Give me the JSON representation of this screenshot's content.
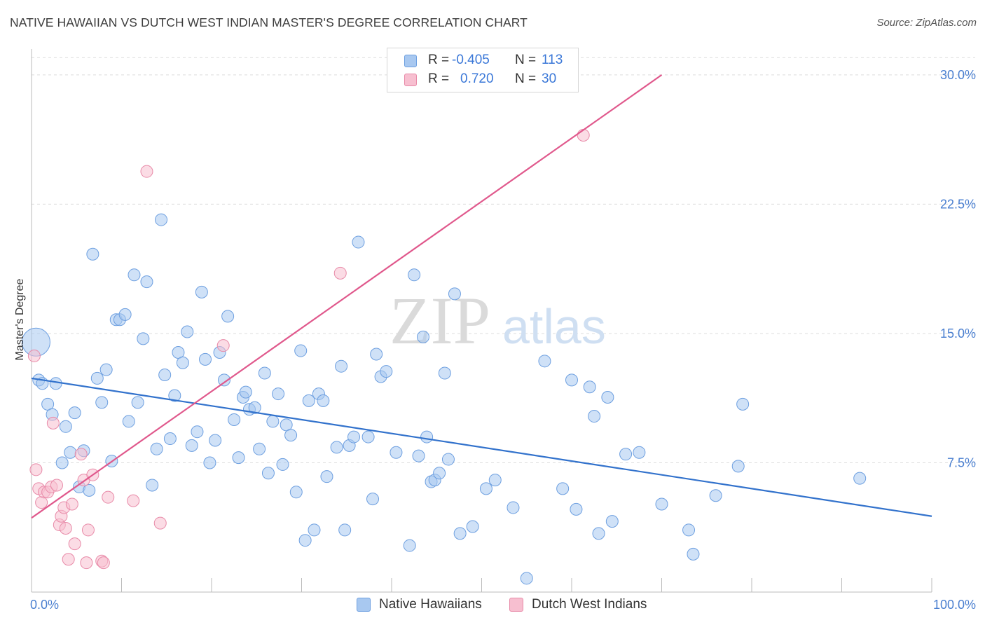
{
  "title": "NATIVE HAWAIIAN VS DUTCH WEST INDIAN MASTER'S DEGREE CORRELATION CHART",
  "source": "Source: ZipAtlas.com",
  "watermark": {
    "zip": "ZIP",
    "atlas": "atlas"
  },
  "stats": [
    {
      "r_label": "R =",
      "r_value": "-0.405",
      "n_label": "N =",
      "n_value": "113",
      "color": "#a8c8f0",
      "border": "#6d9fe0"
    },
    {
      "r_label": "R =",
      "r_value": "0.720",
      "n_label": "N =",
      "n_value": "30",
      "color": "#f7bfd0",
      "border": "#e88aa8"
    }
  ],
  "legend": [
    {
      "label": "Native Hawaiians",
      "color": "#a8c8f0",
      "border": "#6d9fe0"
    },
    {
      "label": "Dutch West Indians",
      "color": "#f7bfd0",
      "border": "#e88aa8"
    }
  ],
  "chart_data": {
    "type": "scatter",
    "title": "NATIVE HAWAIIAN VS DUTCH WEST INDIAN MASTER'S DEGREE CORRELATION CHART",
    "xlabel": "",
    "ylabel": "Master's Degree",
    "xlim": [
      0,
      100
    ],
    "ylim": [
      0,
      31.5
    ],
    "x_tick_labels": [
      {
        "value": 0,
        "label": "0.0%"
      },
      {
        "value": 100,
        "label": "100.0%"
      }
    ],
    "y_ticks": [
      {
        "value": 7.5,
        "label": "7.5%"
      },
      {
        "value": 15,
        "label": "15.0%"
      },
      {
        "value": 22.5,
        "label": "22.5%"
      },
      {
        "value": 30,
        "label": "30.0%"
      }
    ],
    "series": [
      {
        "name": "Native Hawaiians",
        "color": "#a8c8f0",
        "stroke": "#6d9fe0",
        "trend": {
          "x": [
            0,
            100
          ],
          "y": [
            12.4,
            4.4
          ],
          "color": "#3272cc"
        },
        "points": [
          [
            0.8,
            12.3
          ],
          [
            1.2,
            12.1
          ],
          [
            1.8,
            10.9
          ],
          [
            2.3,
            10.3
          ],
          [
            2.7,
            12.1
          ],
          [
            3.4,
            7.5
          ],
          [
            3.8,
            9.6
          ],
          [
            4.3,
            8.1
          ],
          [
            4.8,
            10.4
          ],
          [
            5.3,
            6.1
          ],
          [
            5.8,
            8.2
          ],
          [
            6.4,
            5.9
          ],
          [
            6.8,
            19.6
          ],
          [
            7.3,
            12.4
          ],
          [
            7.8,
            11.0
          ],
          [
            8.3,
            12.9
          ],
          [
            8.9,
            7.6
          ],
          [
            9.4,
            15.8
          ],
          [
            9.8,
            15.8
          ],
          [
            10.4,
            16.1
          ],
          [
            10.8,
            9.9
          ],
          [
            11.4,
            18.4
          ],
          [
            11.8,
            11.0
          ],
          [
            12.4,
            14.7
          ],
          [
            12.8,
            18.0
          ],
          [
            13.4,
            6.2
          ],
          [
            13.9,
            8.3
          ],
          [
            14.4,
            21.6
          ],
          [
            14.8,
            12.6
          ],
          [
            15.4,
            8.9
          ],
          [
            15.9,
            11.4
          ],
          [
            16.3,
            13.9
          ],
          [
            16.8,
            13.3
          ],
          [
            17.3,
            15.1
          ],
          [
            17.8,
            8.5
          ],
          [
            18.4,
            9.3
          ],
          [
            18.9,
            17.4
          ],
          [
            19.3,
            13.5
          ],
          [
            19.8,
            7.5
          ],
          [
            20.4,
            8.8
          ],
          [
            20.9,
            13.9
          ],
          [
            21.4,
            12.3
          ],
          [
            21.8,
            16.0
          ],
          [
            22.5,
            10.0
          ],
          [
            23.0,
            7.8
          ],
          [
            23.5,
            11.3
          ],
          [
            23.8,
            11.6
          ],
          [
            24.2,
            10.6
          ],
          [
            24.8,
            10.7
          ],
          [
            25.3,
            8.3
          ],
          [
            25.9,
            12.7
          ],
          [
            26.3,
            6.9
          ],
          [
            26.8,
            9.9
          ],
          [
            27.4,
            11.5
          ],
          [
            27.9,
            7.4
          ],
          [
            28.3,
            9.7
          ],
          [
            28.8,
            9.1
          ],
          [
            29.4,
            5.8
          ],
          [
            29.9,
            14.0
          ],
          [
            30.4,
            3.0
          ],
          [
            30.8,
            11.1
          ],
          [
            31.4,
            3.6
          ],
          [
            31.9,
            11.5
          ],
          [
            32.4,
            11.1
          ],
          [
            32.8,
            6.7
          ],
          [
            33.9,
            8.4
          ],
          [
            34.4,
            13.1
          ],
          [
            34.8,
            3.6
          ],
          [
            35.3,
            8.5
          ],
          [
            35.8,
            9.0
          ],
          [
            36.3,
            20.3
          ],
          [
            37.4,
            9.0
          ],
          [
            37.9,
            5.4
          ],
          [
            38.3,
            13.8
          ],
          [
            38.8,
            12.5
          ],
          [
            39.4,
            12.8
          ],
          [
            40.5,
            8.1
          ],
          [
            42.0,
            2.7
          ],
          [
            42.5,
            18.4
          ],
          [
            43.0,
            7.9
          ],
          [
            43.5,
            14.8
          ],
          [
            43.9,
            9.0
          ],
          [
            44.4,
            6.4
          ],
          [
            44.8,
            6.5
          ],
          [
            45.3,
            6.9
          ],
          [
            45.9,
            12.7
          ],
          [
            46.3,
            7.7
          ],
          [
            47.0,
            17.3
          ],
          [
            47.6,
            3.4
          ],
          [
            49.0,
            3.8
          ],
          [
            50.5,
            6.0
          ],
          [
            51.5,
            6.5
          ],
          [
            53.5,
            4.9
          ],
          [
            55.0,
            0.8
          ],
          [
            57.0,
            13.4
          ],
          [
            59.0,
            6.0
          ],
          [
            60.0,
            12.3
          ],
          [
            60.5,
            4.8
          ],
          [
            62.0,
            11.9
          ],
          [
            62.5,
            10.2
          ],
          [
            63.0,
            3.4
          ],
          [
            64.0,
            11.3
          ],
          [
            64.5,
            4.1
          ],
          [
            66.0,
            8.0
          ],
          [
            67.5,
            8.1
          ],
          [
            70.0,
            5.1
          ],
          [
            73.0,
            3.6
          ],
          [
            73.5,
            2.2
          ],
          [
            76.0,
            5.6
          ],
          [
            78.5,
            7.3
          ],
          [
            79.0,
            10.9
          ],
          [
            92.0,
            6.6
          ],
          [
            0.5,
            14.5
          ]
        ]
      },
      {
        "name": "Dutch West Indians",
        "color": "#f7bfd0",
        "stroke": "#e88aa8",
        "trend": {
          "x": [
            0,
            70
          ],
          "y": [
            4.3,
            30.0
          ],
          "color": "#e0588c"
        },
        "points": [
          [
            0.3,
            13.7
          ],
          [
            0.5,
            7.1
          ],
          [
            0.8,
            6.0
          ],
          [
            1.1,
            5.2
          ],
          [
            1.4,
            5.8
          ],
          [
            1.8,
            5.8
          ],
          [
            2.2,
            6.1
          ],
          [
            2.4,
            9.8
          ],
          [
            2.8,
            6.2
          ],
          [
            3.1,
            3.9
          ],
          [
            3.3,
            4.4
          ],
          [
            3.6,
            4.9
          ],
          [
            3.8,
            3.7
          ],
          [
            4.1,
            1.9
          ],
          [
            4.5,
            5.1
          ],
          [
            4.8,
            2.8
          ],
          [
            5.5,
            8.0
          ],
          [
            5.8,
            6.5
          ],
          [
            6.1,
            1.7
          ],
          [
            6.3,
            3.6
          ],
          [
            6.8,
            6.8
          ],
          [
            7.8,
            1.8
          ],
          [
            8.0,
            1.7
          ],
          [
            8.5,
            5.5
          ],
          [
            11.3,
            5.3
          ],
          [
            12.8,
            24.4
          ],
          [
            14.3,
            4.0
          ],
          [
            21.3,
            14.3
          ],
          [
            34.3,
            18.5
          ],
          [
            61.3,
            26.5
          ]
        ]
      }
    ]
  }
}
